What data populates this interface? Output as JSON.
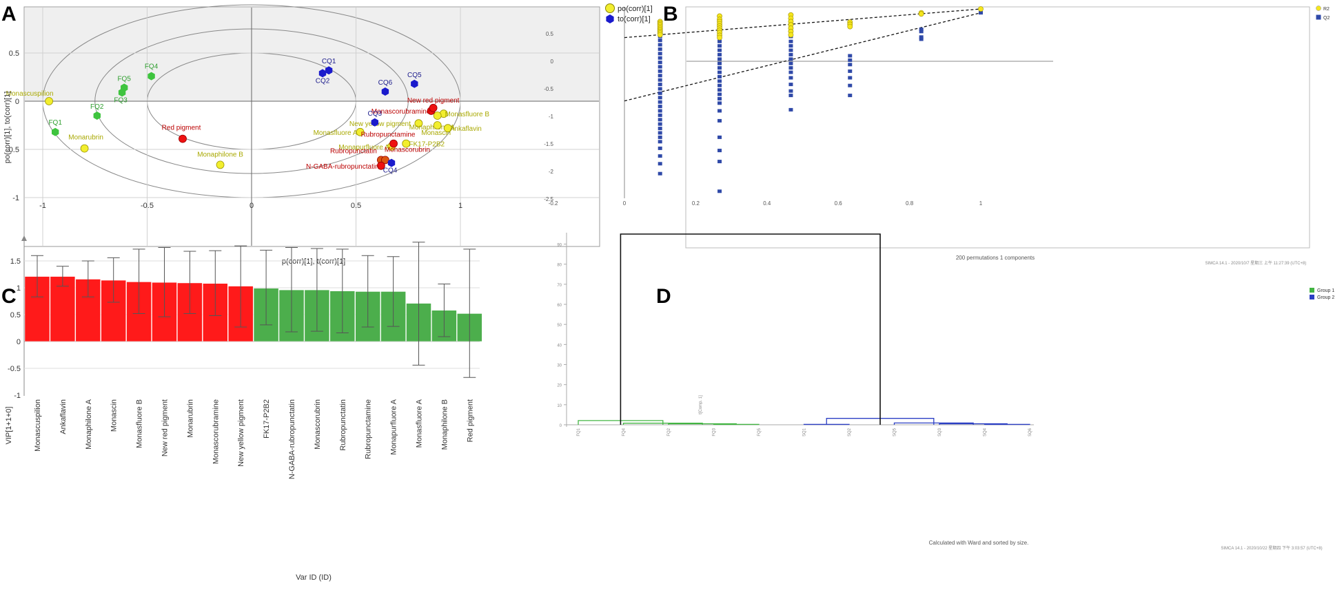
{
  "panels": {
    "a": "A",
    "b": "B",
    "c": "C",
    "d": "D"
  },
  "colors": {
    "yellow": "#f2ee2e",
    "blue": "#1a1acc",
    "green": "#3ec43e",
    "red": "#ee1111",
    "orange": "#dd5511",
    "olive": "#a8a800",
    "darkred": "#bb0000",
    "navy": "#1c1c8c",
    "bar_red": "#ff1a1a",
    "bar_green": "#4cae4c",
    "dend_green": "#42b542",
    "dend_blue": "#2b3fc4",
    "permY": "#f5e61e",
    "permB": "#2f49a8"
  },
  "chart_data": [
    {
      "id": "A",
      "type": "scatter",
      "xlabel": "p(corr)[1], t(corr)[1]",
      "ylabel": "po(corr)[1], to(corr)[1]",
      "xlim": [
        -1.1,
        1.1
      ],
      "ylim": [
        -1,
        1
      ],
      "xticks": [
        "-1",
        "-0.5",
        "0",
        "0.5",
        "1"
      ],
      "yticks": [
        "0.5",
        "0",
        "-0.5",
        "-1"
      ],
      "ellipse_radii": [
        1,
        0.75,
        0.5
      ],
      "legend": [
        {
          "label": "po(corr)[1]",
          "marker": "circle",
          "color": "#f2ee2e"
        },
        {
          "label": "to(corr)[1]",
          "marker": "hexagon",
          "color": "#1a1acc"
        }
      ],
      "points": [
        {
          "label": "Monascuspilion",
          "x": -0.97,
          "y": 0.0,
          "kind": "circle",
          "color": "#f2ee2e",
          "label_color": "#a8a800",
          "dx": -28,
          "dy": -8
        },
        {
          "label": "Monarubrin",
          "x": -0.8,
          "y": -0.49,
          "kind": "circle",
          "color": "#f2ee2e",
          "label_color": "#a8a800",
          "dx": 2,
          "dy": -13
        },
        {
          "label": "Monaphilone B",
          "x": -0.15,
          "y": -0.66,
          "kind": "circle",
          "color": "#f2ee2e",
          "label_color": "#a8a800",
          "dx": 0,
          "dy": -12
        },
        {
          "label": "Monasfluore A",
          "x": 0.52,
          "y": -0.32,
          "kind": "circle",
          "color": "#f2ee2e",
          "label_color": "#a8a800",
          "dx": -36,
          "dy": 4
        },
        {
          "label": "New yellow pigment",
          "x": 0.8,
          "y": -0.23,
          "kind": "circle",
          "color": "#f2ee2e",
          "label_color": "#a8a800",
          "dx": -56,
          "dy": 4
        },
        {
          "label": "Monasfluore B",
          "x": 0.92,
          "y": -0.13,
          "kind": "circle",
          "color": "#f2ee2e",
          "label_color": "#a8a800",
          "dx": 34,
          "dy": 4
        },
        {
          "label": "Monaphilone A",
          "x": 0.89,
          "y": -0.15,
          "kind": "circle",
          "color": "#f2ee2e",
          "label_color": "#a8a800",
          "dx": -8,
          "dy": 20
        },
        {
          "label": "Monascin",
          "x": 0.89,
          "y": -0.25,
          "kind": "circle",
          "color": "#f2ee2e",
          "label_color": "#a8a800",
          "dx": -2,
          "dy": 14
        },
        {
          "label": "Ankaflavin",
          "x": 0.94,
          "y": -0.28,
          "kind": "circle",
          "color": "#f2ee2e",
          "label_color": "#a8a800",
          "dx": 26,
          "dy": 4
        },
        {
          "label": "FK17-P2B2",
          "x": 0.74,
          "y": -0.44,
          "kind": "circle",
          "color": "#f2ee2e",
          "label_color": "#a8a800",
          "dx": 30,
          "dy": 4
        },
        {
          "label": "Monapurfluore A",
          "x": 0.67,
          "y": -0.47,
          "kind": "circle",
          "color": "#f2ee2e",
          "label_color": "#a8a800",
          "dx": -40,
          "dy": 4
        },
        {
          "label": "Monascorubramine",
          "x": 0.86,
          "y": -0.1,
          "kind": "circle",
          "color": "#ee1111",
          "label_color": "#bb0000",
          "dx": -44,
          "dy": 4
        },
        {
          "label": "New red pigment",
          "x": 0.87,
          "y": -0.07,
          "kind": "circle",
          "color": "#ee1111",
          "label_color": "#bb0000",
          "dx": 0,
          "dy": -8
        },
        {
          "label": "Red pigment",
          "x": -0.33,
          "y": -0.39,
          "kind": "circle",
          "color": "#ee1111",
          "label_color": "#bb0000",
          "dx": -2,
          "dy": -13
        },
        {
          "label": "Rubropunctamine",
          "x": 0.68,
          "y": -0.44,
          "kind": "circle",
          "color": "#ee1111",
          "label_color": "#bb0000",
          "dx": -8,
          "dy": -10
        },
        {
          "label": "Rubropunctatin",
          "x": 0.62,
          "y": -0.61,
          "kind": "circle",
          "color": "#dd5511",
          "label_color": "#bb0000",
          "dx": -40,
          "dy": -10
        },
        {
          "label": "Monascorubrin",
          "x": 0.64,
          "y": -0.61,
          "kind": "circle",
          "color": "#dd5511",
          "label_color": "#bb0000",
          "dx": 32,
          "dy": -12
        },
        {
          "label": "N-GABA-rubropunctatin",
          "x": 0.62,
          "y": -0.67,
          "kind": "circle",
          "color": "#ee1111",
          "label_color": "#bb0000",
          "dx": -56,
          "dy": 4
        },
        {
          "label": "CQ1",
          "x": 0.37,
          "y": 0.32,
          "kind": "hexagon",
          "color": "#1a1acc",
          "label_color": "#1c1c8c",
          "dx": 0,
          "dy": -10
        },
        {
          "label": "CQ2",
          "x": 0.34,
          "y": 0.29,
          "kind": "hexagon",
          "color": "#1a1acc",
          "label_color": "#1c1c8c",
          "dx": 0,
          "dy": 14
        },
        {
          "label": "CQ5",
          "x": 0.78,
          "y": 0.18,
          "kind": "hexagon",
          "color": "#1a1acc",
          "label_color": "#1c1c8c",
          "dx": 0,
          "dy": -10
        },
        {
          "label": "CQ6",
          "x": 0.64,
          "y": 0.1,
          "kind": "hexagon",
          "color": "#1a1acc",
          "label_color": "#1c1c8c",
          "dx": 0,
          "dy": -10
        },
        {
          "label": "CQ3",
          "x": 0.59,
          "y": -0.22,
          "kind": "hexagon",
          "color": "#1a1acc",
          "label_color": "#1c1c8c",
          "dx": 0,
          "dy": -10
        },
        {
          "label": "CQ4",
          "x": 0.67,
          "y": -0.64,
          "kind": "hexagon",
          "color": "#1a1acc",
          "label_color": "#1c1c8c",
          "dx": -2,
          "dy": 14
        },
        {
          "label": "FQ4",
          "x": -0.48,
          "y": 0.26,
          "kind": "hexagon",
          "color": "#3ec43e",
          "label_color": "#2e9e2e",
          "dx": 0,
          "dy": -11
        },
        {
          "label": "FQ5",
          "x": -0.61,
          "y": 0.14,
          "kind": "hexagon",
          "color": "#3ec43e",
          "label_color": "#2e9e2e",
          "dx": 0,
          "dy": -10
        },
        {
          "label": "FQ3",
          "x": -0.62,
          "y": 0.09,
          "kind": "hexagon",
          "color": "#3ec43e",
          "label_color": "#2e9e2e",
          "dx": -2,
          "dy": 14
        },
        {
          "label": "FQ2",
          "x": -0.74,
          "y": -0.15,
          "kind": "hexagon",
          "color": "#3ec43e",
          "label_color": "#2e9e2e",
          "dx": 0,
          "dy": -10
        },
        {
          "label": "FQ1",
          "x": -0.94,
          "y": -0.32,
          "kind": "hexagon",
          "color": "#3ec43e",
          "label_color": "#2e9e2e",
          "dx": 0,
          "dy": -11
        }
      ]
    },
    {
      "id": "B",
      "type": "scatter",
      "xlabel": "200 permutations 1 components",
      "xlim": [
        -0.2,
        1.02
      ],
      "ylim": [
        -2.5,
        0.95
      ],
      "xticks": [
        "-0.2",
        "0",
        "0.2",
        "0.4",
        "0.6",
        "0.8",
        "1"
      ],
      "yticks": [
        "0.5",
        "0",
        "-0.5",
        "-1",
        "-1.5",
        "-2",
        "-2.5"
      ],
      "legend": [
        "R2",
        "Q2"
      ],
      "footer": "SIMCA 14.1 - 2020/10/7 星期三 上午 11:27:39 (UTC+8)",
      "r2_intercept": 0.43,
      "q2_intercept": -0.72,
      "r2_final": 0.95,
      "q2_final": 0.88,
      "columns": [
        {
          "x": 0.1,
          "r2": [
            0.72,
            0.69,
            0.66,
            0.63,
            0.6,
            0.57,
            0.54,
            0.51,
            0.48
          ],
          "q2": [
            0.45,
            0.38,
            0.3,
            0.22,
            0.14,
            0.06,
            -0.02,
            -0.1,
            -0.18,
            -0.26,
            -0.34,
            -0.42,
            -0.5,
            -0.58,
            -0.66,
            -0.74,
            -0.82,
            -0.9,
            -0.98,
            -1.06,
            -1.14,
            -1.22,
            -1.3,
            -1.38,
            -1.46,
            -1.58,
            -1.72,
            -1.86,
            -2.04
          ]
        },
        {
          "x": 0.267,
          "r2": [
            0.82,
            0.76,
            0.72,
            0.68,
            0.64,
            0.6,
            0.56,
            0.52,
            0.47,
            0.43
          ],
          "q2": [
            0.36,
            0.28,
            0.2,
            0.12,
            0.04,
            -0.04,
            -0.12,
            -0.2,
            -0.28,
            -0.36,
            -0.44,
            -0.52,
            -0.6,
            -0.68,
            -0.76,
            -0.9,
            -1.08,
            -1.38,
            -1.62,
            -1.82,
            -2.36
          ]
        },
        {
          "x": 0.467,
          "r2": [
            0.84,
            0.78,
            0.72,
            0.66,
            0.6,
            0.54,
            0.48
          ],
          "q2": [
            0.45,
            0.36,
            0.28,
            0.2,
            0.12,
            0.04,
            -0.04,
            -0.12,
            -0.2,
            -0.3,
            -0.42,
            -0.54,
            -0.62,
            -0.88
          ]
        },
        {
          "x": 0.633,
          "r2": [
            0.71,
            0.67,
            0.63
          ],
          "q2": [
            0.1,
            0.02,
            -0.06,
            -0.18,
            -0.3,
            -0.44,
            -0.62
          ]
        },
        {
          "x": 0.833,
          "r2": [
            0.88,
            0.86
          ],
          "q2": [
            0.58,
            0.54,
            0.44,
            0.4
          ]
        },
        {
          "x": 1.0,
          "r2": [
            0.95
          ],
          "q2": [
            0.88
          ]
        }
      ]
    },
    {
      "id": "C",
      "type": "bar",
      "ylabel": "VIP[1+1+0]",
      "xlabel": "Var ID (ID)",
      "ylim": [
        -1,
        1.95
      ],
      "yticks": [
        "1.5",
        "1",
        "0.5",
        "0",
        "-0.5",
        "-1"
      ],
      "categories": [
        "Monascuspilion",
        "Ankaflavin",
        "Monaphilone A",
        "Monascin",
        "Monasfluore B",
        "New red pigment",
        "Monarubrin",
        "Monascorubramine",
        "New yellow pigment",
        "FK17-P2B2",
        "N-GABA-rubropunctatin",
        "Monascorubrin",
        "Rubropunctatin",
        "Rubropunctamine",
        "Monapurfluore A",
        "Monasfluore A",
        "Monaphilone B",
        "Red pigment"
      ],
      "values": [
        1.21,
        1.21,
        1.16,
        1.14,
        1.11,
        1.1,
        1.09,
        1.08,
        1.03,
        0.99,
        0.96,
        0.96,
        0.94,
        0.93,
        0.93,
        0.71,
        0.58,
        0.52
      ],
      "err_low": [
        0.83,
        1.03,
        0.83,
        0.73,
        0.52,
        0.46,
        0.52,
        0.48,
        0.27,
        0.31,
        0.18,
        0.19,
        0.16,
        0.27,
        0.28,
        -0.44,
        0.09,
        -0.67
      ],
      "err_high": [
        1.6,
        1.4,
        1.5,
        1.56,
        1.72,
        1.75,
        1.68,
        1.69,
        1.78,
        1.7,
        1.75,
        1.73,
        1.72,
        1.6,
        1.58,
        1.85,
        1.07,
        1.72
      ],
      "bar_colors": [
        "red",
        "red",
        "red",
        "red",
        "red",
        "red",
        "red",
        "red",
        "red",
        "green",
        "green",
        "green",
        "green",
        "green",
        "green",
        "green",
        "green",
        "green"
      ]
    },
    {
      "id": "D",
      "type": "dendrogram",
      "ylabel": "t[Comp. 1]",
      "ylim": [
        0,
        95
      ],
      "yticks": [
        "90",
        "80",
        "70",
        "60",
        "50",
        "40",
        "30",
        "20",
        "10",
        "0"
      ],
      "leaves": [
        "FQ1",
        "FQ4",
        "FQ2",
        "FQ3",
        "FQ5",
        "SQ1",
        "SQ2",
        "SQ5",
        "SQ3",
        "SQ4",
        "SQ6"
      ],
      "legend": [
        "Group 1",
        "Group 2"
      ],
      "caption": "Calculated with Ward and sorted by size.",
      "footer": "SIMCA 14.1 - 2020/10/22 星期四 下午 3:03:57 (UTC+8)",
      "merges": [
        {
          "left": 3,
          "right": 4,
          "h": 0.2,
          "group": 1
        },
        {
          "left": 2,
          "right": 3.5,
          "h": 0.5,
          "group": 1
        },
        {
          "left": 1,
          "right": 2.75,
          "h": 0.8,
          "group": 1
        },
        {
          "left": 0,
          "right": 1.875,
          "h": 2.1,
          "group": 1
        },
        {
          "left": 9,
          "right": 10,
          "h": 0.2,
          "group": 2
        },
        {
          "left": 8,
          "right": 9.5,
          "h": 0.5,
          "group": 2
        },
        {
          "left": 7,
          "right": 8.75,
          "h": 0.9,
          "group": 2
        },
        {
          "left": 5,
          "right": 6,
          "h": 0.2,
          "group": 2
        },
        {
          "left": 5.5,
          "right": 7.875,
          "h": 3.2,
          "group": 2
        },
        {
          "left": 0.9375,
          "right": 6.6875,
          "h": 95,
          "group": 0
        }
      ]
    }
  ]
}
